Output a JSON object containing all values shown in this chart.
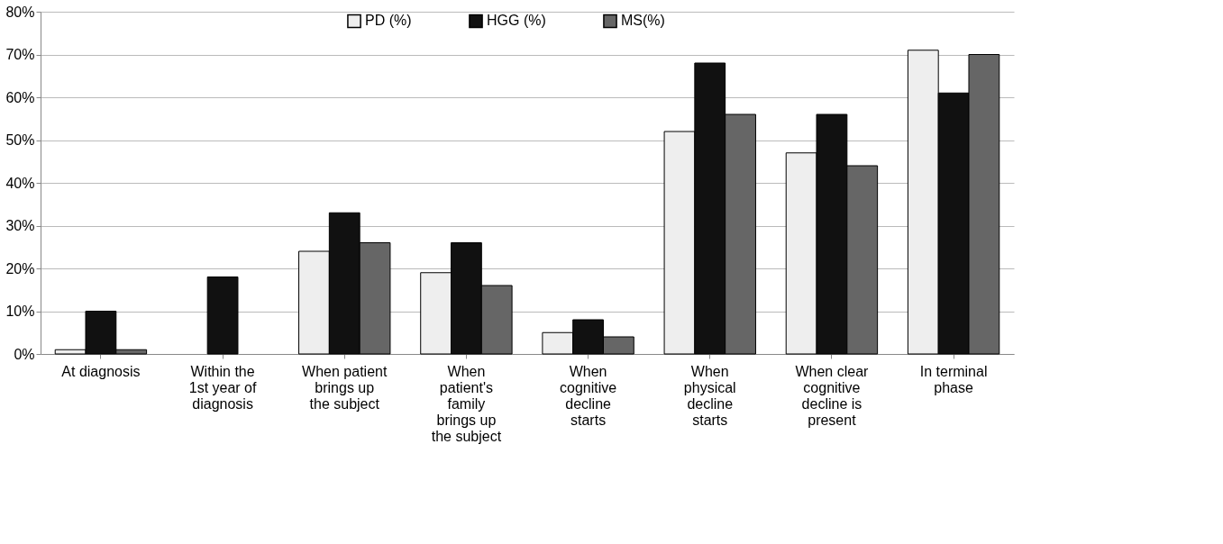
{
  "chart_data": {
    "type": "bar",
    "categories": [
      "At diagnosis",
      "Within the 1st year of diagnosis",
      "When patient brings up the subject",
      "When patient's family brings up the subject",
      "When cognitive decline starts",
      "When physical decline starts",
      "When clear cognitive decline is present",
      "In terminal phase"
    ],
    "series": [
      {
        "name": "PD (%)",
        "color": "#eeeeee",
        "values": [
          1,
          0,
          24,
          19,
          5,
          52,
          47,
          71
        ]
      },
      {
        "name": "HGG (%)",
        "color": "#111111",
        "values": [
          10,
          18,
          33,
          26,
          8,
          68,
          56,
          61
        ]
      },
      {
        "name": "MS(%)",
        "color": "#666666",
        "values": [
          1,
          0,
          26,
          16,
          4,
          56,
          44,
          70
        ]
      }
    ],
    "ylim": [
      0,
      80
    ],
    "yticks": [
      {
        "value": 0,
        "label": "0%"
      },
      {
        "value": 10,
        "label": "10%"
      },
      {
        "value": 20,
        "label": "20%"
      },
      {
        "value": 30,
        "label": "30%"
      },
      {
        "value": 40,
        "label": "40%"
      },
      {
        "value": 50,
        "label": "50%"
      },
      {
        "value": 60,
        "label": "60%"
      },
      {
        "value": 70,
        "label": "70%"
      },
      {
        "value": 80,
        "label": "80%"
      }
    ],
    "grid": "y",
    "legend": "top"
  }
}
